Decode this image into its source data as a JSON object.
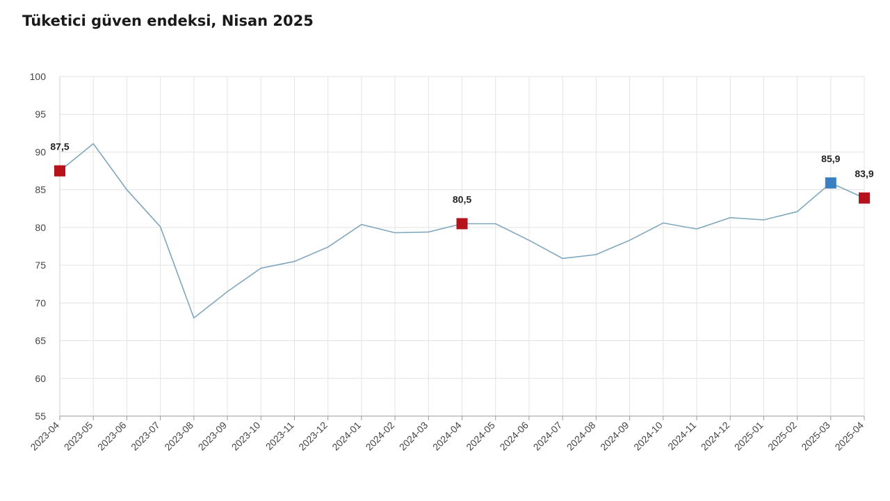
{
  "chart_data": {
    "type": "line",
    "title": "Tüketici güven endeksi, Nisan 2025",
    "xlabel": "",
    "ylabel": "",
    "ylim": [
      55,
      100
    ],
    "yticks": [
      "55",
      "60",
      "65",
      "70",
      "75",
      "80",
      "85",
      "90",
      "95",
      "100"
    ],
    "grid": true,
    "line_color": "#7ea6bd",
    "highlight_color_red": "#b5121b",
    "highlight_color_blue": "#3a7fc1",
    "categories": [
      "2023-04",
      "2023-05",
      "2023-06",
      "2023-07",
      "2023-08",
      "2023-09",
      "2023-10",
      "2023-11",
      "2023-12",
      "2024-01",
      "2024-02",
      "2024-03",
      "2024-04",
      "2024-05",
      "2024-06",
      "2024-07",
      "2024-08",
      "2024-09",
      "2024-10",
      "2024-11",
      "2024-12",
      "2025-01",
      "2025-02",
      "2025-03",
      "2025-04"
    ],
    "values": [
      87.5,
      91.1,
      85.0,
      80.1,
      68.0,
      71.5,
      74.6,
      75.5,
      77.4,
      80.4,
      79.3,
      79.4,
      80.5,
      80.5,
      78.3,
      75.9,
      76.4,
      78.3,
      80.6,
      79.8,
      81.3,
      81.0,
      82.1,
      85.9,
      83.9
    ],
    "highlights": [
      {
        "category": "2023-04",
        "label": "87,5",
        "color": "red"
      },
      {
        "category": "2024-04",
        "label": "80,5",
        "color": "red"
      },
      {
        "category": "2025-03",
        "label": "85,9",
        "color": "blue"
      },
      {
        "category": "2025-04",
        "label": "83,9",
        "color": "red"
      }
    ]
  }
}
